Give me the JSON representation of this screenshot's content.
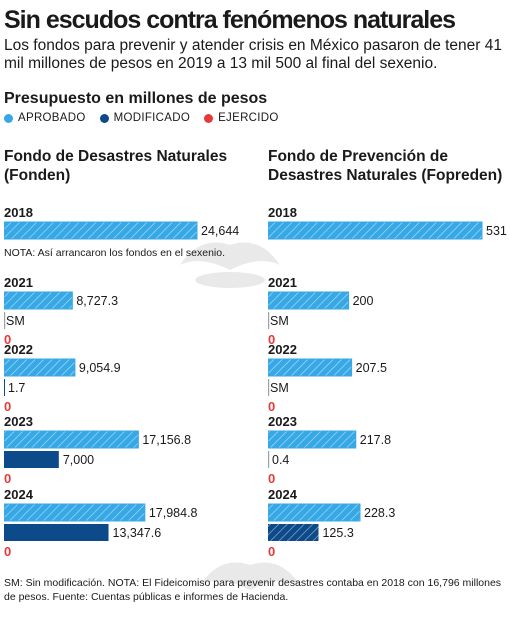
{
  "header": {
    "title": "Sin escudos contra fenómenos naturales",
    "subtitle": "Los fondos para prevenir y atender crisis en México pasaron de tener 41 mil millones de pesos en 2019 a 13 mil 500 al final del sexenio.",
    "budget_label": "Presupuesto en millones de pesos"
  },
  "legend": [
    {
      "label": "APROBADO",
      "color": "#37a8e6"
    },
    {
      "label": "MODIFICADO",
      "color": "#0d4a8a"
    },
    {
      "label": "EJERCIDO",
      "color": "#e63a3a"
    }
  ],
  "colors": {
    "aprobado": "#37a8e6",
    "modificado": "#0d4a8a",
    "ejercido": "#e63a3a",
    "hatch": "#ffffff"
  },
  "footnote": "SM: Sin modificación. NOTA: El Fideicomiso para prevenir desastres contaba en 2018 con 16,796 millones de pesos. Fuente: Cuentas públicas e informes de Hacienda.",
  "chart_data": [
    {
      "type": "bar",
      "title": "Fondo de Desastres Naturales (Fonden)",
      "note_2018": "NOTA: Así arrancaron los fondos en el sexenio.",
      "max": 24644,
      "years": [
        {
          "year": "2018",
          "aprobado": 24644,
          "aprobado_label": "24,644"
        },
        {
          "year": "2021",
          "aprobado": 8727.3,
          "aprobado_label": "8,727.3",
          "modificado": null,
          "modificado_label": "SM",
          "ejercido": 0,
          "ejercido_label": "0"
        },
        {
          "year": "2022",
          "aprobado": 9054.9,
          "aprobado_label": "9,054.9",
          "modificado": 1.7,
          "modificado_label": "1.7",
          "ejercido": 0,
          "ejercido_label": "0"
        },
        {
          "year": "2023",
          "aprobado": 17156.8,
          "aprobado_label": "17,156.8",
          "modificado": 7000,
          "modificado_label": "7,000",
          "ejercido": 0,
          "ejercido_label": "0"
        },
        {
          "year": "2024",
          "aprobado": 17984.8,
          "aprobado_label": "17,984.8",
          "modificado": 13347.6,
          "modificado_label": "13,347.6",
          "ejercido": 0,
          "ejercido_label": "0"
        }
      ]
    },
    {
      "type": "bar",
      "title": "Fondo de Prevención de Desastres Naturales (Fopreden)",
      "max": 531,
      "years": [
        {
          "year": "2018",
          "aprobado": 531,
          "aprobado_label": "531"
        },
        {
          "year": "2021",
          "aprobado": 200,
          "aprobado_label": "200",
          "modificado": null,
          "modificado_label": "SM",
          "ejercido": 0,
          "ejercido_label": "0"
        },
        {
          "year": "2022",
          "aprobado": 207.5,
          "aprobado_label": "207.5",
          "modificado": null,
          "modificado_label": "SM",
          "ejercido": 0,
          "ejercido_label": "0"
        },
        {
          "year": "2023",
          "aprobado": 217.8,
          "aprobado_label": "217.8",
          "modificado": 0.4,
          "modificado_label": "0.4",
          "ejercido": 0,
          "ejercido_label": "0"
        },
        {
          "year": "2024",
          "aprobado": 228.3,
          "aprobado_label": "228.3",
          "modificado": 125.3,
          "modificado_label": "125.3",
          "ejercido": 0,
          "ejercido_label": "0"
        }
      ]
    }
  ]
}
